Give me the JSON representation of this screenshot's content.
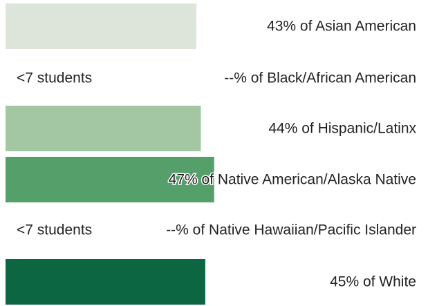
{
  "chart_data": {
    "type": "bar",
    "orientation": "horizontal",
    "labels": [
      "43% of Asian American",
      "--% of Black/African American",
      "44% of Hispanic/Latinx",
      "47% of Native American/Alaska Native",
      "--% of Native Hawaiian/Pacific Islander",
      "45% of White"
    ],
    "values": [
      43,
      null,
      44,
      47,
      null,
      45
    ],
    "notes": [
      null,
      "<7 students",
      null,
      null,
      "<7 students",
      null
    ],
    "colors": [
      "#dde5da",
      null,
      "#a3c7a3",
      "#55a06a",
      null,
      "#0d6642"
    ]
  }
}
